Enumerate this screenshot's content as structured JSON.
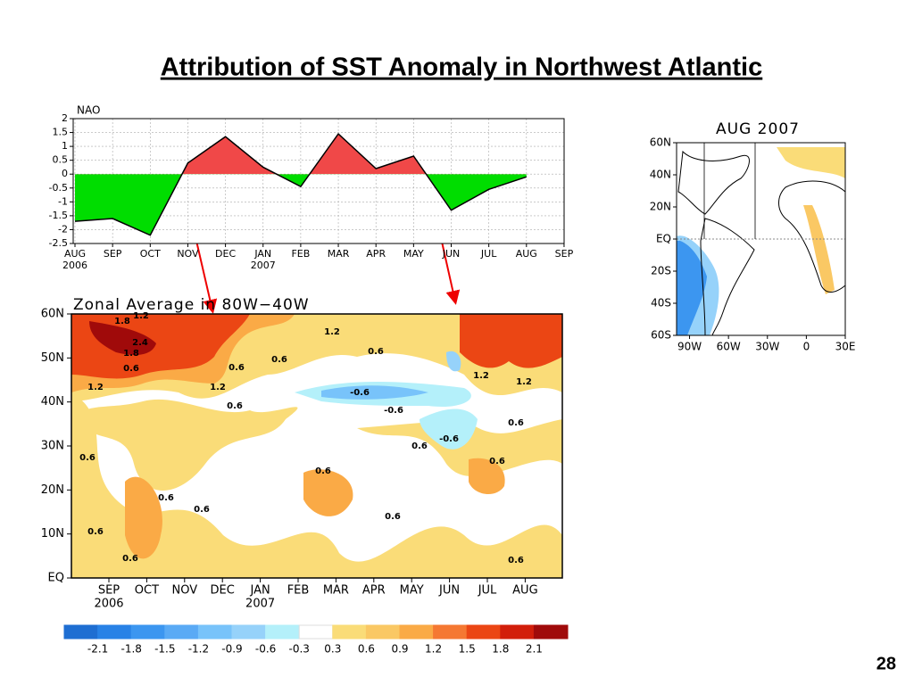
{
  "title": "Attribution of SST Anomaly in Northwest Atlantic",
  "page_number": "28",
  "chart_data": [
    {
      "type": "area",
      "title": "NAO",
      "categories": [
        "AUG",
        "SEP",
        "OCT",
        "NOV",
        "DEC",
        "JAN",
        "FEB",
        "MAR",
        "APR",
        "MAY",
        "JUN",
        "JUL",
        "AUG",
        "SEP"
      ],
      "category_years": [
        "2006",
        null,
        null,
        null,
        null,
        "2007",
        null,
        null,
        null,
        null,
        null,
        null,
        null,
        null
      ],
      "values": [
        -1.7,
        -1.6,
        -2.2,
        0.4,
        1.35,
        0.25,
        -0.45,
        1.45,
        0.2,
        0.65,
        -1.3,
        -0.55,
        -0.1,
        null
      ],
      "ylim": [
        -2.5,
        2
      ],
      "yticks": [
        -2.5,
        -2,
        -1.5,
        -1,
        -0.5,
        0,
        0.5,
        1,
        1.5,
        2
      ],
      "positive_color": "#f04848",
      "negative_color": "#00dd00",
      "grid": true
    },
    {
      "type": "hovmoller",
      "title": "Zonal Average in 80W−40W",
      "categories": [
        "SEP",
        "OCT",
        "NOV",
        "DEC",
        "JAN",
        "FEB",
        "MAR",
        "APR",
        "MAY",
        "JUN",
        "JUL",
        "AUG"
      ],
      "category_years": [
        "2006",
        null,
        null,
        null,
        "2007",
        null,
        null,
        null,
        null,
        null,
        null,
        null
      ],
      "ylim": [
        0,
        60
      ],
      "yticks": [
        {
          "value": 0,
          "label": "EQ"
        },
        {
          "value": 10,
          "label": "10N"
        },
        {
          "value": 20,
          "label": "20N"
        },
        {
          "value": 30,
          "label": "30N"
        },
        {
          "value": 40,
          "label": "40N"
        },
        {
          "value": 50,
          "label": "50N"
        },
        {
          "value": 60,
          "label": "60N"
        }
      ],
      "contour_labels": [
        1.8,
        1.2,
        2.4,
        1.8,
        0.6,
        1.2,
        0.6,
        0.6,
        1.2,
        0.6,
        1.2,
        0.6,
        -0.6,
        -0.6,
        0.6,
        -0.6,
        1.2,
        1.2,
        0.6,
        0.6,
        0.6,
        0.6,
        0.6,
        0.6,
        0.6,
        0.6,
        0.6,
        0.6
      ]
    },
    {
      "type": "map",
      "title": "AUG 2007",
      "xlim": [
        -100,
        30
      ],
      "ylim": [
        -60,
        60
      ],
      "xticks": [
        {
          "value": -90,
          "label": "90W"
        },
        {
          "value": -60,
          "label": "60W"
        },
        {
          "value": -30,
          "label": "30W"
        },
        0,
        {
          "value": 30,
          "label": "30E"
        }
      ],
      "yticks": [
        {
          "value": 60,
          "label": "60N"
        },
        {
          "value": 40,
          "label": "40N"
        },
        {
          "value": 20,
          "label": "20N"
        },
        {
          "value": 0,
          "label": "EQ"
        },
        {
          "value": -20,
          "label": "20S"
        },
        {
          "value": -40,
          "label": "40S"
        },
        {
          "value": -60,
          "label": "60S"
        }
      ]
    },
    {
      "type": "colorbar",
      "levels": [
        -2.1,
        -1.8,
        -1.5,
        -1.2,
        -0.9,
        -0.6,
        -0.3,
        0.3,
        0.6,
        0.9,
        1.2,
        1.5,
        1.8,
        2.1
      ],
      "colors": [
        "#1e6ed2",
        "#2882e6",
        "#3c96f0",
        "#5aaaf5",
        "#78c3fa",
        "#96d2fa",
        "#b4f0fa",
        "#ffffff",
        "#fadc78",
        "#fac864",
        "#faaa46",
        "#f57832",
        "#eb4614",
        "#d21e0a",
        "#a00a0a"
      ]
    }
  ]
}
